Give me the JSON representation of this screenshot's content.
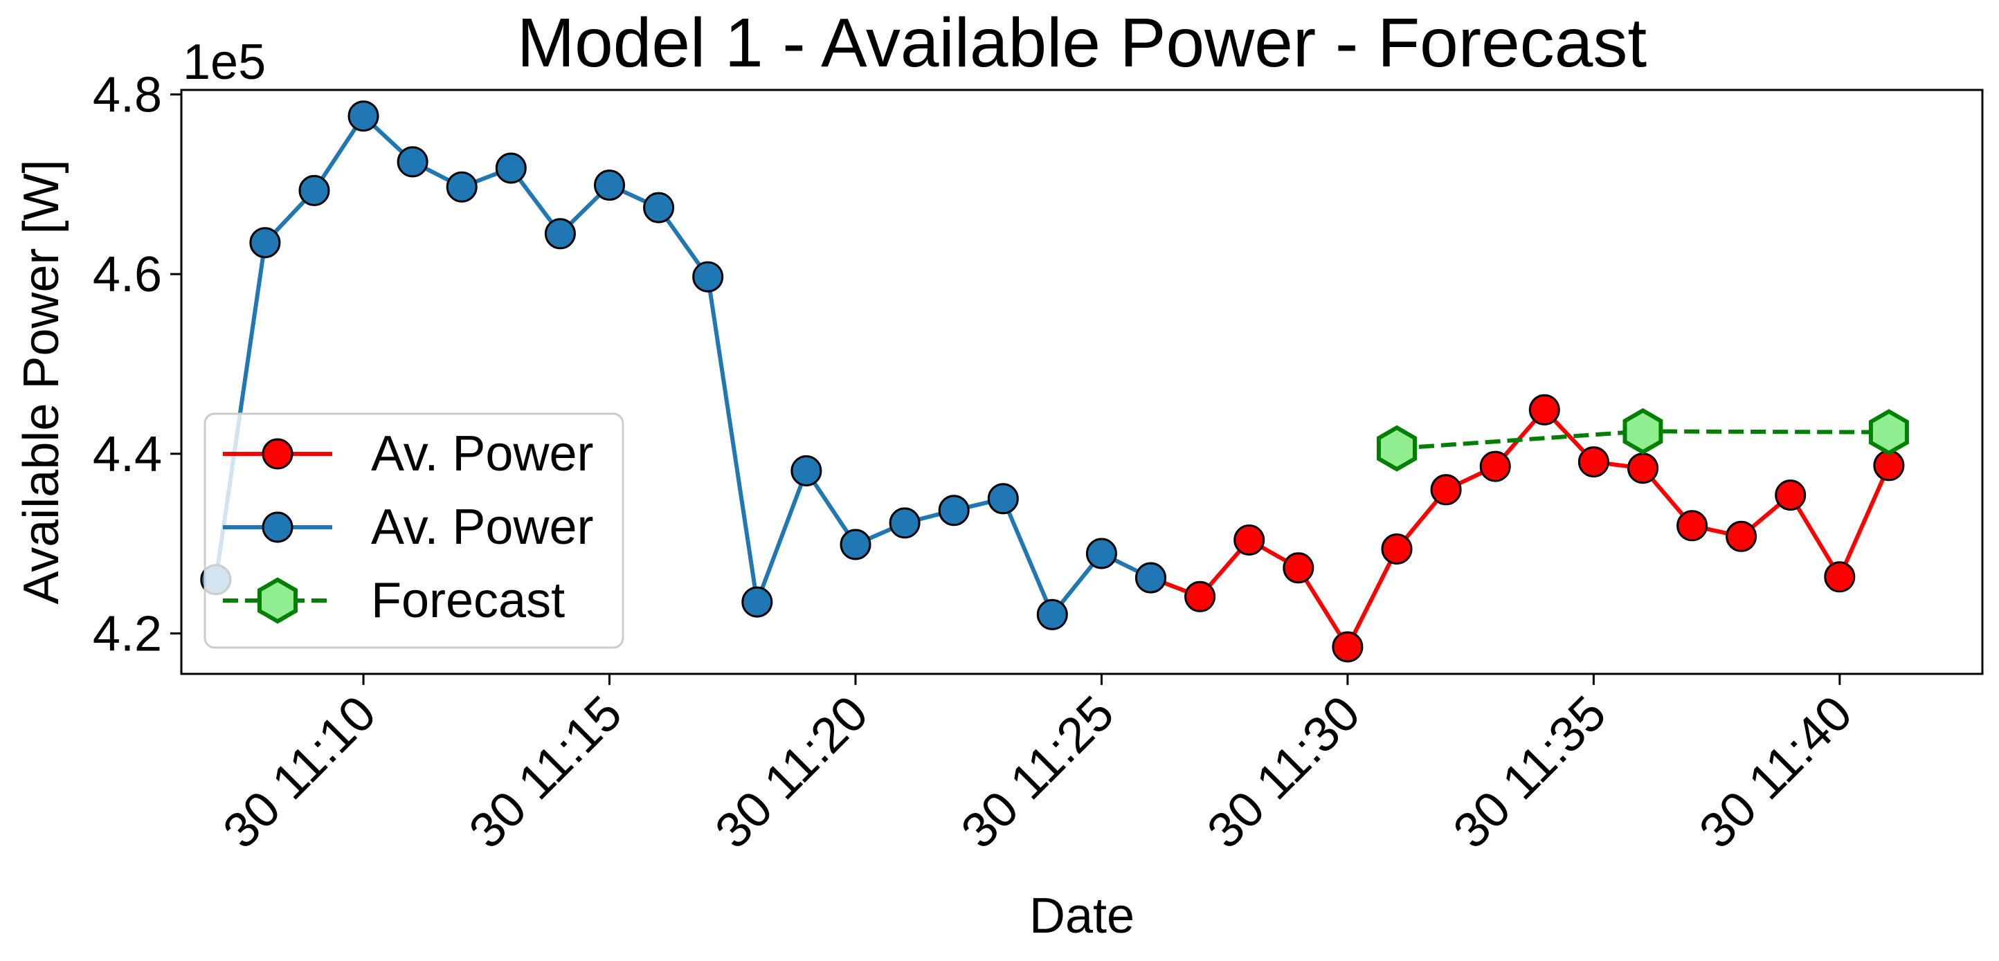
{
  "chart_data": {
    "type": "line",
    "title": "Model 1 - Available Power - Forecast",
    "xlabel": "Date",
    "ylabel": "Available Power [W]",
    "y_offset_label": "1e5",
    "x_unit": "minutes after 30 11:00",
    "xlim": [
      6.3,
      42.9
    ],
    "ylim": [
      4.155,
      4.805
    ],
    "x_ticks": [
      10,
      15,
      20,
      25,
      30,
      35,
      40
    ],
    "x_tick_labels": [
      "30 11:10",
      "30 11:15",
      "30 11:20",
      "30 11:25",
      "30 11:30",
      "30 11:35",
      "30 11:40"
    ],
    "y_ticks": [
      4.2,
      4.4,
      4.6,
      4.8
    ],
    "y_tick_labels": [
      "4.2",
      "4.4",
      "4.6",
      "4.8"
    ],
    "grid": false,
    "legend_position": "lower-left",
    "series": [
      {
        "name": "Av. Power",
        "color": "#ff0000",
        "line_style": "solid",
        "marker": "circle",
        "marker_face": "#ff0000",
        "x": [
          26,
          27,
          28,
          29,
          30,
          31,
          32,
          33,
          34,
          35,
          36,
          37,
          38,
          39,
          40,
          41
        ],
        "y": [
          4.262,
          4.241,
          4.304,
          4.273,
          4.185,
          4.294,
          4.36,
          4.386,
          4.449,
          4.391,
          4.384,
          4.32,
          4.308,
          4.354,
          4.263,
          4.387
        ]
      },
      {
        "name": "Av. Power",
        "color": "#1f77b4",
        "line_style": "solid",
        "marker": "circle",
        "marker_face": "#1f77b4",
        "x": [
          7,
          8,
          9,
          10,
          11,
          12,
          13,
          14,
          15,
          16,
          17,
          18,
          19,
          20,
          21,
          22,
          23,
          24,
          25,
          26
        ],
        "y": [
          4.26,
          4.635,
          4.693,
          4.776,
          4.725,
          4.697,
          4.718,
          4.645,
          4.699,
          4.674,
          4.597,
          4.235,
          4.381,
          4.299,
          4.323,
          4.337,
          4.35,
          4.221,
          4.289,
          4.262
        ]
      },
      {
        "name": "Forecast",
        "color": "#008000",
        "line_style": "dashed",
        "marker": "hexagon",
        "marker_face": "#90ee90",
        "x": [
          31,
          36,
          41
        ],
        "y": [
          4.406,
          4.425,
          4.424
        ]
      }
    ]
  }
}
